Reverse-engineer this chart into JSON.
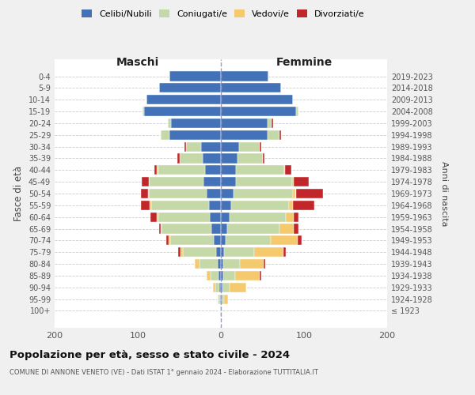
{
  "age_groups": [
    "100+",
    "95-99",
    "90-94",
    "85-89",
    "80-84",
    "75-79",
    "70-74",
    "65-69",
    "60-64",
    "55-59",
    "50-54",
    "45-49",
    "40-44",
    "35-39",
    "30-34",
    "25-29",
    "20-24",
    "15-19",
    "10-14",
    "5-9",
    "0-4"
  ],
  "birth_years": [
    "≤ 1923",
    "1924-1928",
    "1929-1933",
    "1934-1938",
    "1939-1943",
    "1944-1948",
    "1949-1953",
    "1954-1958",
    "1959-1963",
    "1964-1968",
    "1969-1973",
    "1974-1978",
    "1979-1983",
    "1984-1988",
    "1989-1993",
    "1994-1998",
    "1999-2003",
    "2004-2008",
    "2009-2013",
    "2014-2018",
    "2019-2023"
  ],
  "maschi": {
    "celibi": [
      1,
      1,
      2,
      3,
      4,
      6,
      9,
      11,
      13,
      14,
      17,
      21,
      19,
      22,
      24,
      62,
      60,
      92,
      90,
      74,
      62
    ],
    "coniugati": [
      0,
      2,
      5,
      9,
      22,
      40,
      52,
      60,
      62,
      70,
      70,
      66,
      56,
      28,
      18,
      10,
      4,
      2,
      0,
      0,
      0
    ],
    "vedovi": [
      0,
      1,
      3,
      5,
      5,
      3,
      2,
      1,
      2,
      2,
      1,
      0,
      2,
      0,
      0,
      0,
      0,
      0,
      0,
      0,
      0
    ],
    "divorziati": [
      0,
      0,
      0,
      0,
      0,
      2,
      3,
      2,
      8,
      10,
      8,
      8,
      3,
      2,
      2,
      0,
      0,
      0,
      0,
      0,
      0
    ]
  },
  "femmine": {
    "nubili": [
      0,
      1,
      2,
      3,
      3,
      4,
      6,
      8,
      10,
      12,
      15,
      18,
      18,
      20,
      22,
      56,
      56,
      90,
      87,
      72,
      57
    ],
    "coniugate": [
      0,
      3,
      8,
      14,
      20,
      36,
      54,
      62,
      68,
      70,
      72,
      68,
      58,
      30,
      25,
      14,
      5,
      3,
      0,
      0,
      0
    ],
    "vedove": [
      0,
      5,
      20,
      30,
      28,
      35,
      32,
      18,
      10,
      5,
      3,
      2,
      1,
      0,
      0,
      0,
      0,
      0,
      0,
      0,
      0
    ],
    "divorziate": [
      0,
      0,
      0,
      2,
      2,
      3,
      5,
      5,
      5,
      25,
      33,
      18,
      8,
      2,
      2,
      2,
      2,
      0,
      0,
      0,
      0
    ]
  },
  "colors": {
    "celibi_nubili": "#4472b8",
    "coniugati": "#c5d9a8",
    "vedovi": "#f5c96e",
    "divorziati": "#c0262a"
  },
  "legend_labels": [
    "Celibi/Nubili",
    "Coniugati/e",
    "Vedovi/e",
    "Divorziati/e"
  ],
  "title": "Popolazione per età, sesso e stato civile - 2024",
  "subtitle": "COMUNE DI ANNONE VENETO (VE) - Dati ISTAT 1° gennaio 2024 - Elaborazione TUTTITALIA.IT",
  "xlabel_maschi": "Maschi",
  "xlabel_femmine": "Femmine",
  "ylabel_left": "Fasce di età",
  "ylabel_right": "Anni di nascita",
  "xlim": 200,
  "bg_color": "#f0f0f0",
  "plot_bg_color": "#ffffff",
  "grid_color": "#cccccc"
}
